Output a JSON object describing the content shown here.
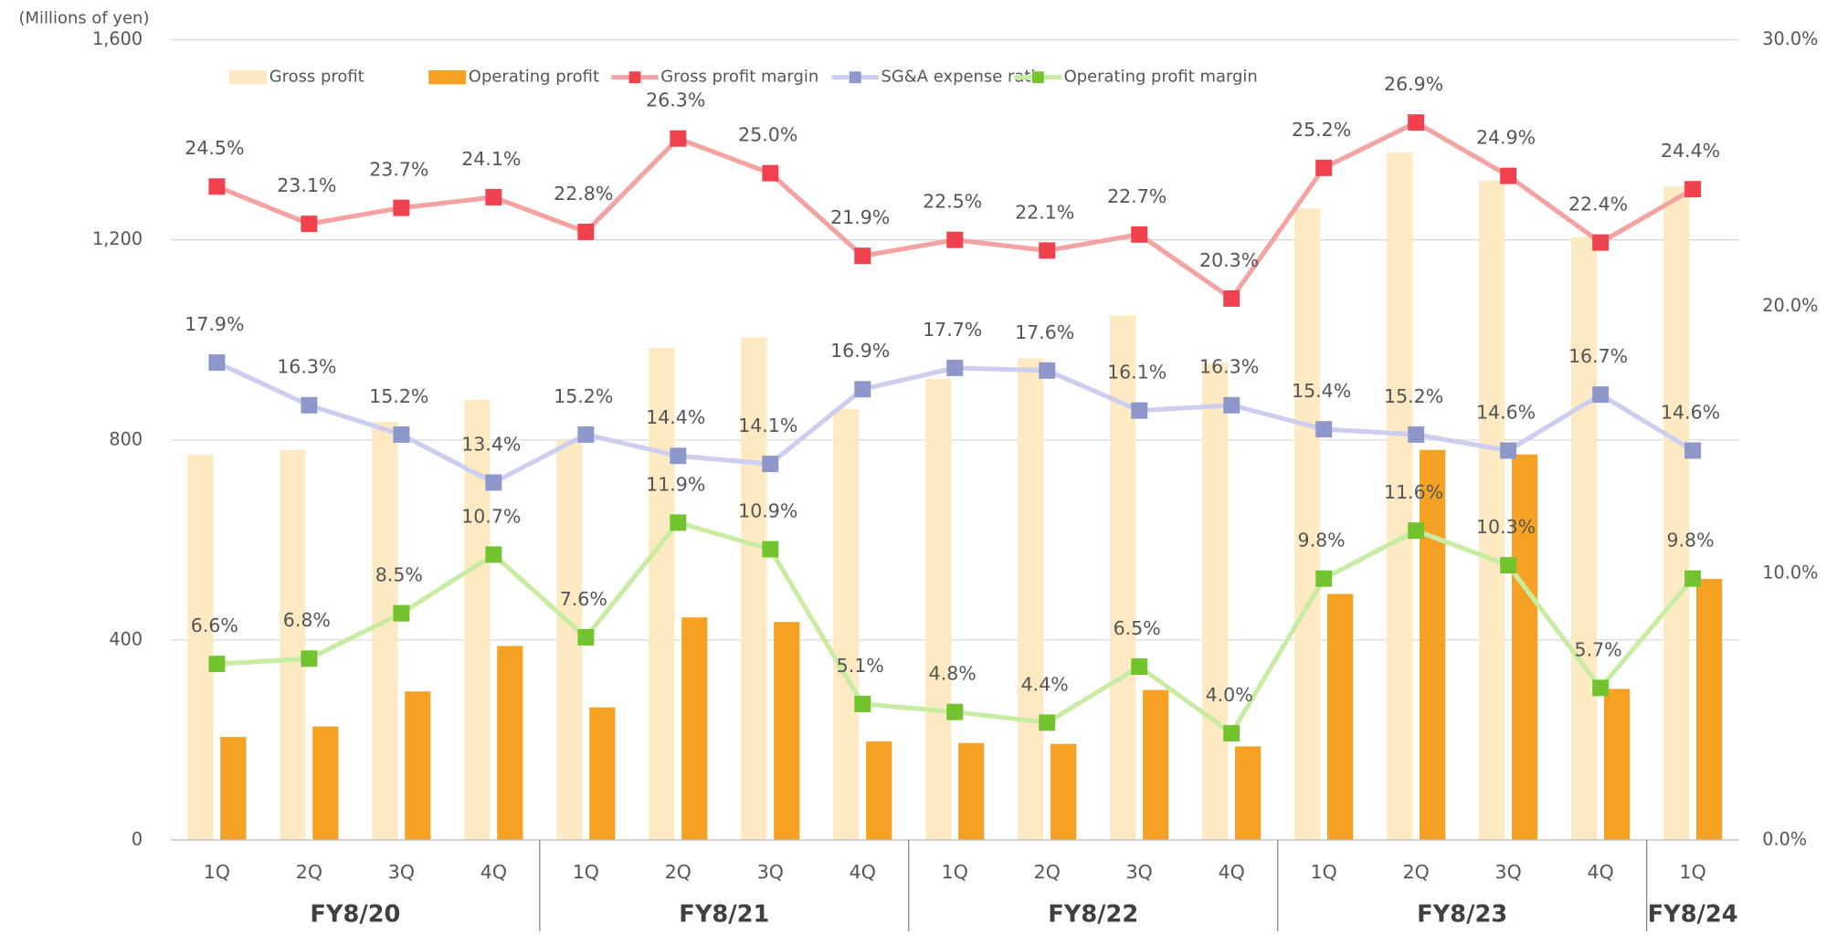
{
  "chart_data": {
    "type": "bar-line",
    "y_axis_label": "(Millions of yen)",
    "categories": [
      "1Q",
      "2Q",
      "3Q",
      "4Q",
      "1Q",
      "2Q",
      "3Q",
      "4Q",
      "1Q",
      "2Q",
      "3Q",
      "4Q",
      "1Q",
      "2Q",
      "3Q",
      "4Q",
      "1Q"
    ],
    "groups": [
      "FY8/20",
      "FY8/21",
      "FY8/22",
      "FY8/23",
      "FY8/24"
    ],
    "ylim": [
      0,
      1600
    ],
    "yticks": [
      0,
      400,
      800,
      {
        "value": 1200,
        "label": "1,200"
      },
      {
        "value": 1600,
        "label": "1,600"
      }
    ],
    "y2lim": [
      0,
      30
    ],
    "y2ticks": [
      {
        "value": 0,
        "label": "0.0%"
      },
      {
        "value": 10,
        "label": "10.0%"
      },
      {
        "value": 20,
        "label": "20.0%"
      },
      {
        "value": 30,
        "label": "30.0%"
      }
    ],
    "grid": true,
    "series": [
      {
        "name": "Gross profit",
        "kind": "bar",
        "color": "#fde9c2",
        "values": [
          771,
          780,
          836,
          880,
          800,
          984,
          1005,
          862,
          922,
          963,
          1049,
          953,
          1263,
          1375,
          1319,
          1206,
          1307
        ]
      },
      {
        "name": "Operating profit",
        "kind": "bar",
        "color": "#f5a123",
        "values": [
          206,
          227,
          297,
          388,
          265,
          445,
          436,
          197,
          194,
          192,
          300,
          187,
          492,
          780,
          771,
          302,
          522
        ]
      },
      {
        "name": "Gross profit margin",
        "kind": "line",
        "axis": "y2",
        "color": "#f4a3a3",
        "marker_color": "#f0414f",
        "values": [
          24.5,
          23.1,
          23.7,
          24.1,
          22.8,
          26.3,
          25.0,
          21.9,
          22.5,
          22.1,
          22.7,
          20.3,
          25.2,
          26.9,
          24.9,
          22.4,
          24.4
        ],
        "value_labels": [
          "24.5%",
          "23.1%",
          "23.7%",
          "24.1%",
          "22.8%",
          "26.3%",
          "25.0%",
          "21.9%",
          "22.5%",
          "22.1%",
          "22.7%",
          "20.3%",
          "25.2%",
          "26.9%",
          "24.9%",
          "22.4%",
          "24.4%"
        ]
      },
      {
        "name": "SG&A expense ratio",
        "kind": "line",
        "axis": "y2",
        "color": "#cdcdee",
        "marker_color": "#8e97c9",
        "values": [
          17.9,
          16.3,
          15.2,
          13.4,
          15.2,
          14.4,
          14.1,
          16.9,
          17.7,
          17.6,
          16.1,
          16.3,
          15.4,
          15.2,
          14.6,
          16.7,
          14.6
        ],
        "value_labels": [
          "17.9%",
          "16.3%",
          "15.2%",
          "13.4%",
          "15.2%",
          "14.4%",
          "14.1%",
          "16.9%",
          "17.7%",
          "17.6%",
          "16.1%",
          "16.3%",
          "15.4%",
          "15.2%",
          "14.6%",
          "16.7%",
          "14.6%"
        ]
      },
      {
        "name": "Operating profit margin",
        "kind": "line",
        "axis": "y2",
        "color": "#c9eca3",
        "marker_color": "#72c32e",
        "values": [
          6.6,
          6.8,
          8.5,
          10.7,
          7.6,
          11.9,
          10.9,
          5.1,
          4.8,
          4.4,
          6.5,
          4.0,
          9.8,
          11.6,
          10.3,
          5.7,
          9.8
        ],
        "value_labels": [
          "6.6%",
          "6.8%",
          "8.5%",
          "10.7%",
          "7.6%",
          "11.9%",
          "10.9%",
          "5.1%",
          "4.8%",
          "4.4%",
          "6.5%",
          "4.0%",
          "9.8%",
          "11.6%",
          "10.3%",
          "5.7%",
          "9.8%"
        ]
      }
    ]
  }
}
